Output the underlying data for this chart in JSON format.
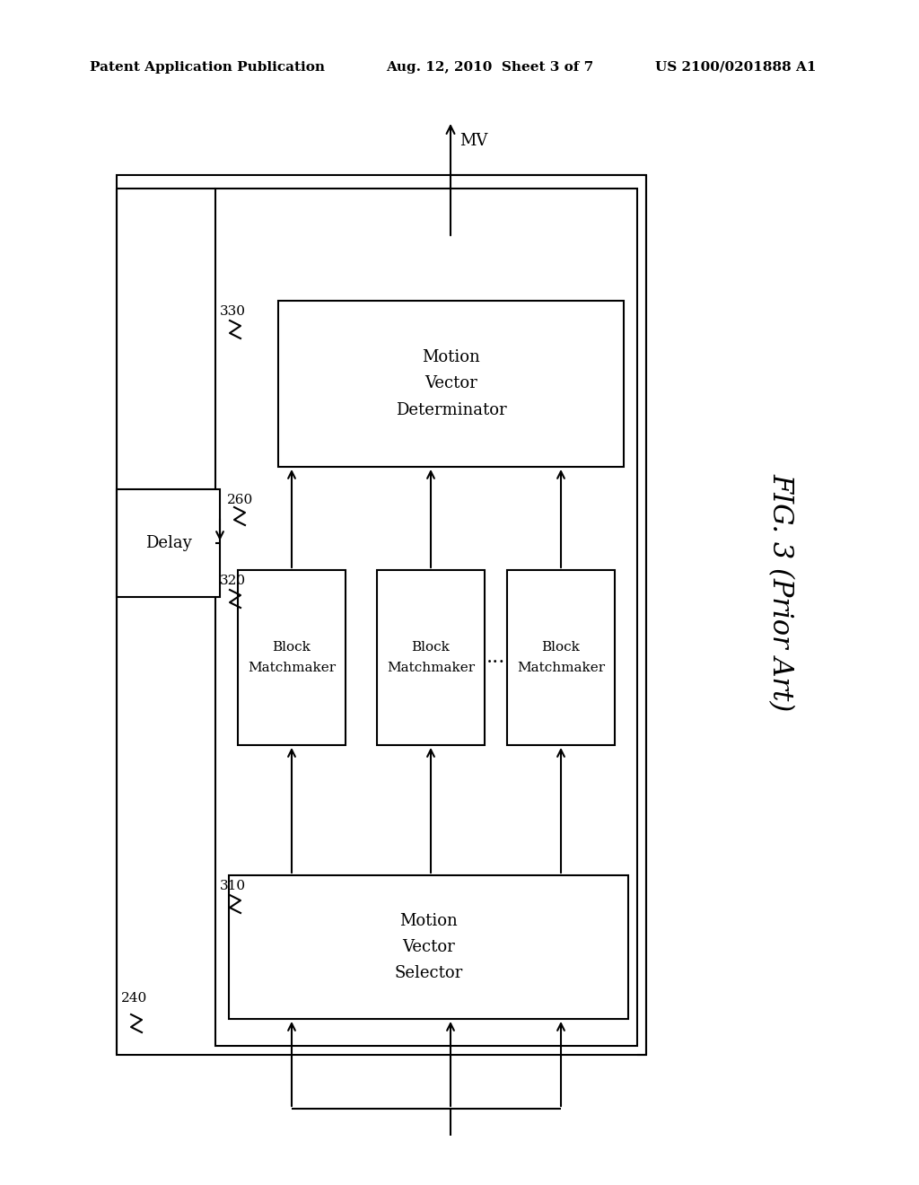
{
  "bg_color": "#ffffff",
  "header_left": "Patent Application Publication",
  "header_mid": "Aug. 12, 2010  Sheet 3 of 7",
  "header_right": "US 2100/0201888 A1",
  "fig_label": "FIG. 3 (Prior Art)",
  "mv_label": "MV",
  "delay_label": "Delay",
  "ref_260": "260",
  "ref_310": "310",
  "ref_320": "320",
  "ref_330": "330",
  "ref_240": "240",
  "bm_label": "Block\nMatchmaker",
  "mvs_label": "Motion\nVector\nSelector",
  "mvd_label": "Motion\nVector\nDeterminator",
  "lw": 1.5
}
